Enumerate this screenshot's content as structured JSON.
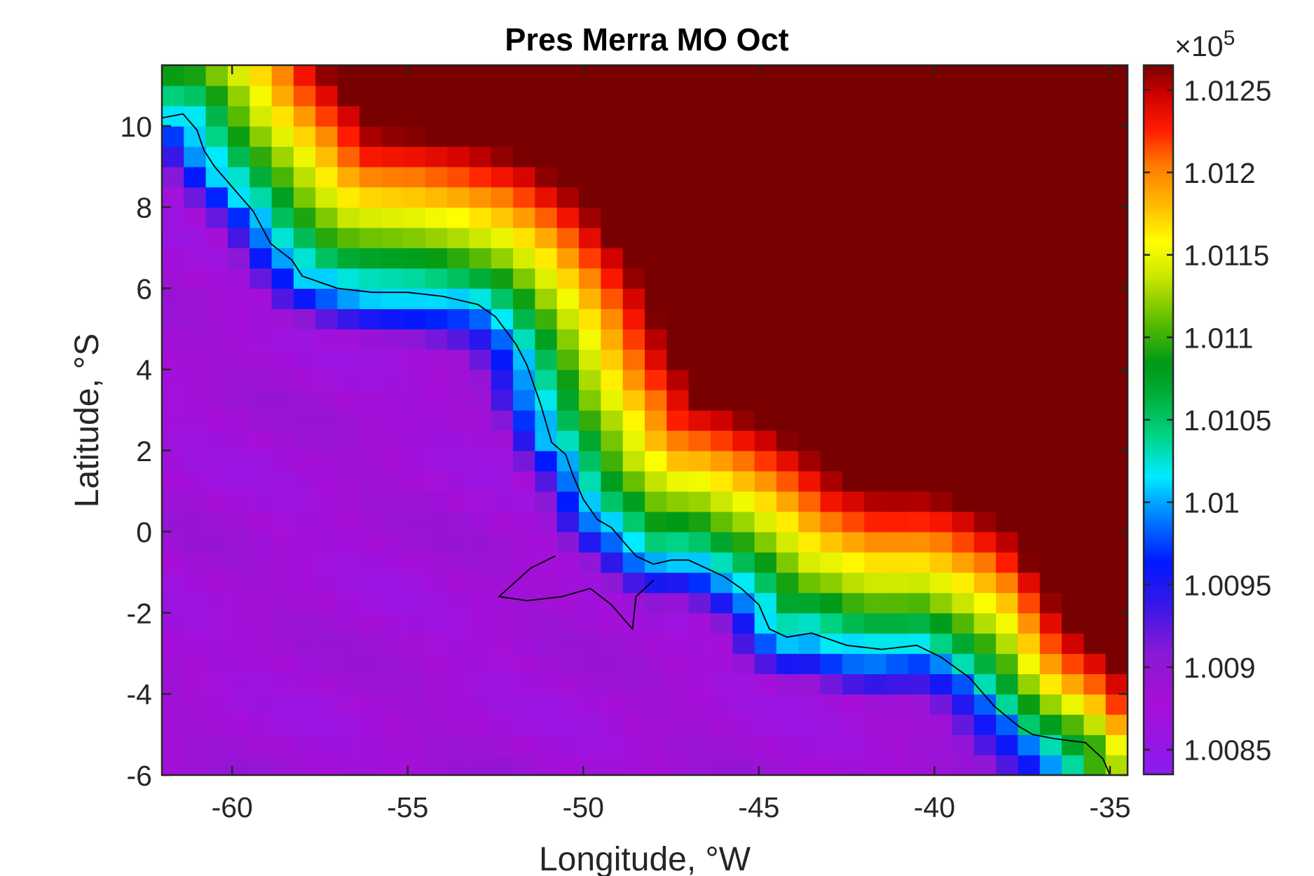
{
  "chart_data": {
    "type": "heatmap",
    "title": "Pres Merra MO Oct",
    "xlabel": "Longitude, °W",
    "ylabel": "Latitude, °S",
    "xlim": [
      -62,
      -34.5
    ],
    "ylim": [
      -6,
      11.5
    ],
    "xticks": [
      -60,
      -55,
      -50,
      -45,
      -40,
      -35
    ],
    "xtick_labels": [
      "-60",
      "-55",
      "-50",
      "-45",
      "-40",
      "-35"
    ],
    "yticks": [
      -6,
      -4,
      -2,
      0,
      2,
      4,
      6,
      8,
      10
    ],
    "ytick_labels": [
      "-6",
      "-4",
      "-2",
      "0",
      "2",
      "4",
      "6",
      "8",
      "10"
    ],
    "grid": false,
    "colorbar": {
      "position": "right",
      "multiplier_label": "×10",
      "multiplier_exponent": "5",
      "clim": [
        1.00835,
        1.01265
      ],
      "ticks": [
        1.0085,
        1.009,
        1.0095,
        1.01,
        1.0105,
        1.011,
        1.0115,
        1.012,
        1.0125
      ],
      "tick_labels": [
        "1.0085",
        "1.009",
        "1.0095",
        "1.01",
        "1.0105",
        "1.011",
        "1.0115",
        "1.012",
        "1.0125"
      ],
      "colormap": "jet-like (purple → blue → cyan → green → yellow → red → dark red)"
    },
    "field": {
      "description": "MERRA sea-level pressure, October, gridded ~0.625° lon × 0.5° lat",
      "units_scale": "×10^5 Pa",
      "approx_min": 1.0085,
      "approx_max": 1.0127,
      "low_region": "southwest / interior (≈1.0086–1.0090)",
      "high_region": "northeast / open Atlantic (≈1.0120–1.0127)"
    },
    "coastline": {
      "points_lonlat": [
        [
          -62.0,
          10.2
        ],
        [
          -61.4,
          10.3
        ],
        [
          -61.0,
          9.9
        ],
        [
          -60.8,
          9.4
        ],
        [
          -60.5,
          9.0
        ],
        [
          -60.0,
          8.5
        ],
        [
          -59.4,
          7.9
        ],
        [
          -58.9,
          7.1
        ],
        [
          -58.6,
          6.9
        ],
        [
          -58.3,
          6.7
        ],
        [
          -58.0,
          6.3
        ],
        [
          -57.0,
          6.0
        ],
        [
          -56.0,
          5.9
        ],
        [
          -55.0,
          5.9
        ],
        [
          -54.0,
          5.8
        ],
        [
          -53.0,
          5.6
        ],
        [
          -52.5,
          5.3
        ],
        [
          -51.9,
          4.6
        ],
        [
          -51.6,
          4.1
        ],
        [
          -51.2,
          3.1
        ],
        [
          -50.9,
          2.2
        ],
        [
          -50.5,
          1.9
        ],
        [
          -50.3,
          1.4
        ],
        [
          -50.0,
          0.8
        ],
        [
          -49.6,
          0.3
        ],
        [
          -49.2,
          0.1
        ],
        [
          -48.8,
          -0.3
        ],
        [
          -48.5,
          -0.6
        ],
        [
          -48.0,
          -0.8
        ],
        [
          -47.5,
          -0.7
        ],
        [
          -47.0,
          -0.7
        ],
        [
          -46.5,
          -0.9
        ],
        [
          -46.0,
          -1.1
        ],
        [
          -45.5,
          -1.4
        ],
        [
          -45.0,
          -1.8
        ],
        [
          -44.7,
          -2.4
        ],
        [
          -44.2,
          -2.6
        ],
        [
          -43.5,
          -2.5
        ],
        [
          -42.5,
          -2.8
        ],
        [
          -41.5,
          -2.9
        ],
        [
          -40.5,
          -2.8
        ],
        [
          -39.8,
          -3.1
        ],
        [
          -39.0,
          -3.6
        ],
        [
          -38.3,
          -4.3
        ],
        [
          -37.6,
          -4.8
        ],
        [
          -37.2,
          -5.0
        ],
        [
          -36.6,
          -5.1
        ],
        [
          -35.7,
          -5.2
        ],
        [
          -35.2,
          -5.6
        ],
        [
          -35.0,
          -6.0
        ]
      ],
      "amazon_delta": [
        [
          -50.8,
          -0.6
        ],
        [
          -51.5,
          -0.9
        ],
        [
          -52.4,
          -1.6
        ],
        [
          -51.6,
          -1.7
        ],
        [
          -50.6,
          -1.6
        ],
        [
          -49.8,
          -1.4
        ],
        [
          -49.2,
          -1.8
        ],
        [
          -48.6,
          -2.4
        ],
        [
          -48.5,
          -1.6
        ],
        [
          -48.0,
          -1.2
        ]
      ]
    }
  }
}
